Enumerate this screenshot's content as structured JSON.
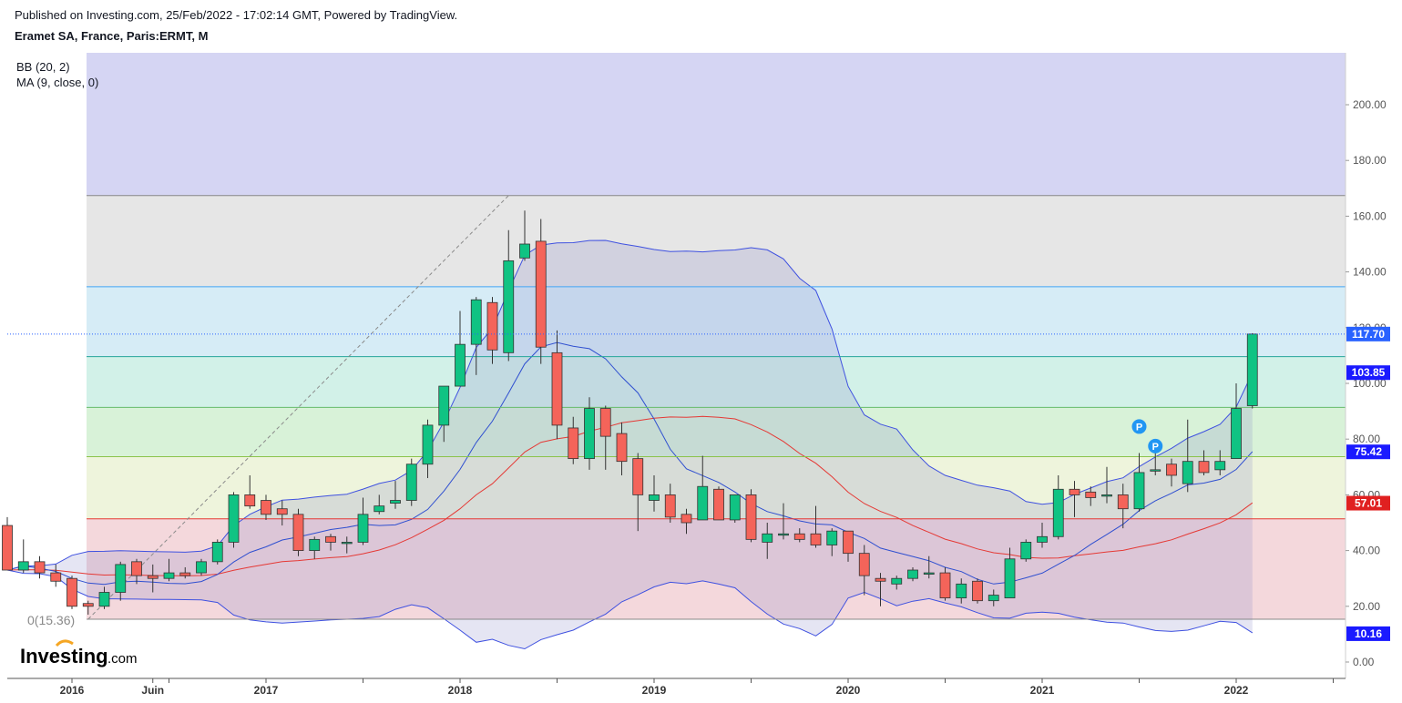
{
  "header": {
    "published": "Published on Investing.com, 25/Feb/2022 - 17:02:14 GMT, Powered by TradingView.",
    "instrument": "Eramet SA, France, Paris:ERMT, M"
  },
  "indicators": [
    "BB (20, 2)",
    "MA (9, close, 0)"
  ],
  "logo": {
    "text": "Investing",
    "suffix": ".com"
  },
  "fib_label": "0(15.36)",
  "chart_data": {
    "type": "candlestick",
    "ylim": [
      -3,
      220
    ],
    "y_ticks": [
      "0.00",
      "20.00",
      "40.00",
      "60.00",
      "80.00",
      "100.00",
      "120.00",
      "140.00",
      "160.00",
      "180.00",
      "200.00"
    ],
    "x_ticks": [
      "2016",
      "Juin",
      "2017",
      "2018",
      "2019",
      "2020",
      "2021",
      "2022"
    ],
    "price_tags": [
      {
        "value": 117.7,
        "label": "117.70"
      },
      {
        "value": 103.85,
        "label": "103.85"
      },
      {
        "value": 75.42,
        "label": "75.42"
      },
      {
        "value": 57.01,
        "label": "57.01"
      },
      {
        "value": 10.16,
        "label": "10.16"
      }
    ],
    "fib_levels": [
      15.36,
      51.4,
      73.7,
      91.4,
      109.6,
      134.7,
      167.4
    ],
    "markers": [
      {
        "label": "P",
        "index": 70,
        "value": 84.5
      },
      {
        "label": "P",
        "index": 71,
        "value": 77.5
      }
    ],
    "candles": [
      {
        "o": 49,
        "h": 52,
        "l": 33,
        "c": 33
      },
      {
        "o": 33,
        "h": 44,
        "l": 32,
        "c": 36
      },
      {
        "o": 36,
        "h": 38,
        "l": 30,
        "c": 32
      },
      {
        "o": 32,
        "h": 35,
        "l": 27,
        "c": 29
      },
      {
        "o": 30,
        "h": 31,
        "l": 19,
        "c": 20
      },
      {
        "o": 21,
        "h": 22,
        "l": 17,
        "c": 20
      },
      {
        "o": 20,
        "h": 27,
        "l": 19,
        "c": 25
      },
      {
        "o": 25,
        "h": 36,
        "l": 22,
        "c": 35
      },
      {
        "o": 36,
        "h": 37,
        "l": 28,
        "c": 31
      },
      {
        "o": 31,
        "h": 35,
        "l": 25,
        "c": 30
      },
      {
        "o": 30,
        "h": 37,
        "l": 29,
        "c": 32
      },
      {
        "o": 32,
        "h": 34,
        "l": 30,
        "c": 31
      },
      {
        "o": 32,
        "h": 37,
        "l": 31,
        "c": 36
      },
      {
        "o": 36,
        "h": 44,
        "l": 35,
        "c": 43
      },
      {
        "o": 43,
        "h": 61,
        "l": 41,
        "c": 60
      },
      {
        "o": 60,
        "h": 67,
        "l": 55,
        "c": 56
      },
      {
        "o": 58,
        "h": 60,
        "l": 51,
        "c": 53
      },
      {
        "o": 55,
        "h": 58,
        "l": 49,
        "c": 53
      },
      {
        "o": 53,
        "h": 55,
        "l": 38,
        "c": 40
      },
      {
        "o": 40,
        "h": 45,
        "l": 37,
        "c": 44
      },
      {
        "o": 45,
        "h": 46,
        "l": 40,
        "c": 43
      },
      {
        "o": 43,
        "h": 45,
        "l": 39,
        "c": 43
      },
      {
        "o": 43,
        "h": 59,
        "l": 42,
        "c": 53
      },
      {
        "o": 54,
        "h": 60,
        "l": 53,
        "c": 56
      },
      {
        "o": 57,
        "h": 65,
        "l": 55,
        "c": 58
      },
      {
        "o": 58,
        "h": 73,
        "l": 56,
        "c": 71
      },
      {
        "o": 71,
        "h": 87,
        "l": 66,
        "c": 85
      },
      {
        "o": 85,
        "h": 99,
        "l": 79,
        "c": 99
      },
      {
        "o": 99,
        "h": 126,
        "l": 99,
        "c": 114
      },
      {
        "o": 114,
        "h": 131,
        "l": 103,
        "c": 130
      },
      {
        "o": 129,
        "h": 131,
        "l": 107,
        "c": 112
      },
      {
        "o": 111,
        "h": 155,
        "l": 108,
        "c": 144
      },
      {
        "o": 145,
        "h": 162,
        "l": 144,
        "c": 150
      },
      {
        "o": 151,
        "h": 159,
        "l": 107,
        "c": 113
      },
      {
        "o": 111,
        "h": 119,
        "l": 80,
        "c": 85
      },
      {
        "o": 84,
        "h": 88,
        "l": 71,
        "c": 73
      },
      {
        "o": 73,
        "h": 95,
        "l": 69,
        "c": 91
      },
      {
        "o": 91,
        "h": 92,
        "l": 69,
        "c": 81
      },
      {
        "o": 82,
        "h": 86,
        "l": 67,
        "c": 72
      },
      {
        "o": 73,
        "h": 75,
        "l": 47,
        "c": 60
      },
      {
        "o": 58,
        "h": 67,
        "l": 54,
        "c": 60
      },
      {
        "o": 60,
        "h": 64,
        "l": 50,
        "c": 52
      },
      {
        "o": 53,
        "h": 55,
        "l": 46,
        "c": 50
      },
      {
        "o": 51,
        "h": 74,
        "l": 51,
        "c": 63
      },
      {
        "o": 62,
        "h": 63,
        "l": 51,
        "c": 51
      },
      {
        "o": 51,
        "h": 60,
        "l": 50,
        "c": 60
      },
      {
        "o": 60,
        "h": 62,
        "l": 43,
        "c": 44
      },
      {
        "o": 43,
        "h": 50,
        "l": 37,
        "c": 46
      },
      {
        "o": 46,
        "h": 57,
        "l": 44,
        "c": 46
      },
      {
        "o": 46,
        "h": 48,
        "l": 43,
        "c": 44
      },
      {
        "o": 46,
        "h": 56,
        "l": 41,
        "c": 42
      },
      {
        "o": 42,
        "h": 48,
        "l": 38,
        "c": 47
      },
      {
        "o": 47,
        "h": 47,
        "l": 36,
        "c": 39
      },
      {
        "o": 39,
        "h": 42,
        "l": 24,
        "c": 31
      },
      {
        "o": 30,
        "h": 32,
        "l": 20,
        "c": 29
      },
      {
        "o": 28,
        "h": 31,
        "l": 26,
        "c": 30
      },
      {
        "o": 30,
        "h": 34,
        "l": 29,
        "c": 33
      },
      {
        "o": 32,
        "h": 38,
        "l": 30,
        "c": 32
      },
      {
        "o": 32,
        "h": 34,
        "l": 22,
        "c": 23
      },
      {
        "o": 23,
        "h": 30,
        "l": 21,
        "c": 28
      },
      {
        "o": 29,
        "h": 30,
        "l": 21,
        "c": 22
      },
      {
        "o": 22,
        "h": 26,
        "l": 20,
        "c": 24
      },
      {
        "o": 23,
        "h": 41,
        "l": 23,
        "c": 37
      },
      {
        "o": 37,
        "h": 44,
        "l": 36,
        "c": 43
      },
      {
        "o": 43,
        "h": 50,
        "l": 41,
        "c": 45
      },
      {
        "o": 45,
        "h": 67,
        "l": 44,
        "c": 62
      },
      {
        "o": 62,
        "h": 65,
        "l": 52,
        "c": 60
      },
      {
        "o": 61,
        "h": 63,
        "l": 56,
        "c": 59
      },
      {
        "o": 60,
        "h": 70,
        "l": 57,
        "c": 60
      },
      {
        "o": 60,
        "h": 64,
        "l": 48,
        "c": 55
      },
      {
        "o": 55,
        "h": 75,
        "l": 54,
        "c": 68
      },
      {
        "o": 69,
        "h": 75,
        "l": 67,
        "c": 69
      },
      {
        "o": 71,
        "h": 73,
        "l": 63,
        "c": 67
      },
      {
        "o": 64,
        "h": 87,
        "l": 61,
        "c": 72
      },
      {
        "o": 72,
        "h": 76,
        "l": 67,
        "c": 68
      },
      {
        "o": 69,
        "h": 76,
        "l": 67,
        "c": 72
      },
      {
        "o": 73,
        "h": 100,
        "l": 73,
        "c": 91
      },
      {
        "o": 92,
        "h": 118,
        "l": 91,
        "c": 117.7
      }
    ]
  }
}
